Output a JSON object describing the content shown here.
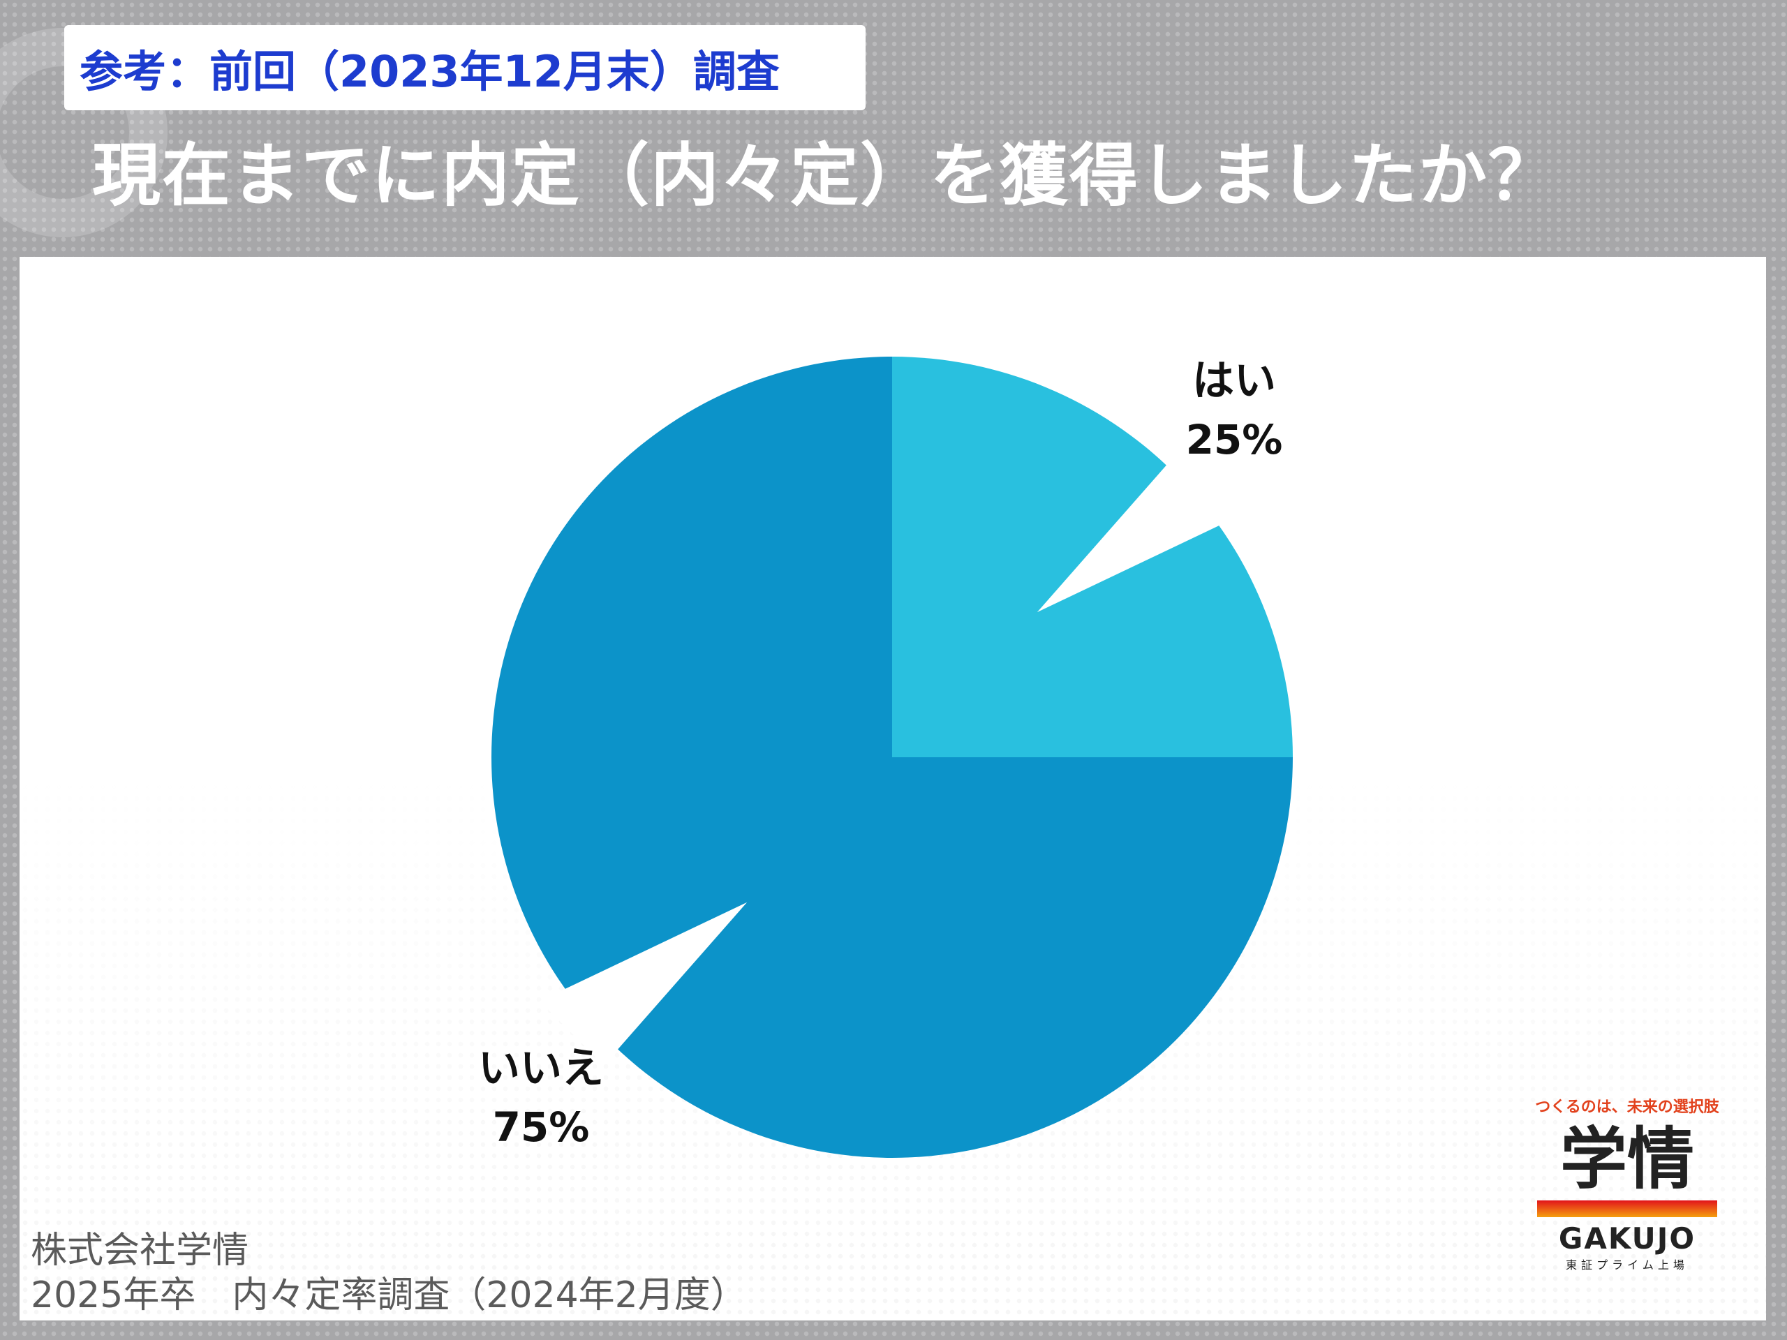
{
  "header": {
    "badge": "参考：前回（2023年12月末）調査",
    "title": "現在までに内定（内々定）を獲得しましたか？"
  },
  "chart_data": {
    "type": "pie",
    "categories": [
      "はい",
      "いいえ"
    ],
    "values": [
      25,
      75
    ],
    "labels": [
      "25%",
      "75%"
    ],
    "colors": [
      "#29c0df",
      "#0c93c9"
    ]
  },
  "footer": {
    "company": "株式会社学情",
    "survey": "2025年卒　内々定率調査（2024年2月度）"
  },
  "logo": {
    "tagline": "つくるのは、未来の選択肢",
    "mark": "学情",
    "name": "GAKUJO",
    "sub": "東証プライム上場"
  }
}
